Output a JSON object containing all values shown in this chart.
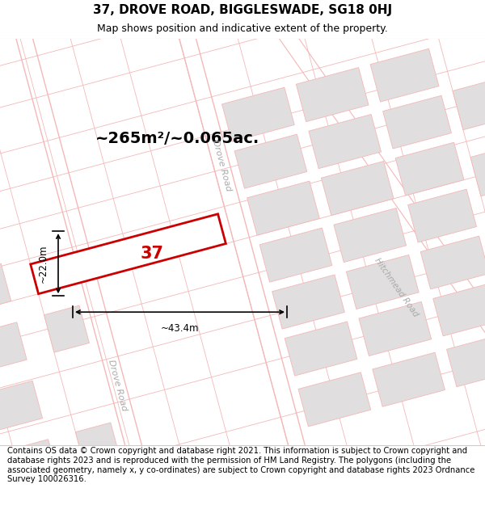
{
  "title_line1": "37, DROVE ROAD, BIGGLESWADE, SG18 0HJ",
  "title_line2": "Map shows position and indicative extent of the property.",
  "footer_text": "Contains OS data © Crown copyright and database right 2021. This information is subject to Crown copyright and database rights 2023 and is reproduced with the permission of HM Land Registry. The polygons (including the associated geometry, namely x, y co-ordinates) are subject to Crown copyright and database rights 2023 Ordnance Survey 100026316.",
  "bg_color": "#ffffff",
  "road_line_color": "#f4b8b8",
  "building_color": "#e0dede",
  "building_edge_color": "#f4b8b8",
  "highlight_color": "#cc0000",
  "area_text": "~265m²/~0.065ac.",
  "width_text": "~43.4m",
  "height_text": "~22.0m",
  "plot_number": "37",
  "title_fontsize": 11,
  "subtitle_fontsize": 9,
  "footer_fontsize": 7.2,
  "annotation_fontsize": 14,
  "road_label_color": "#aaaaaa",
  "dim_fontsize": 8.5
}
